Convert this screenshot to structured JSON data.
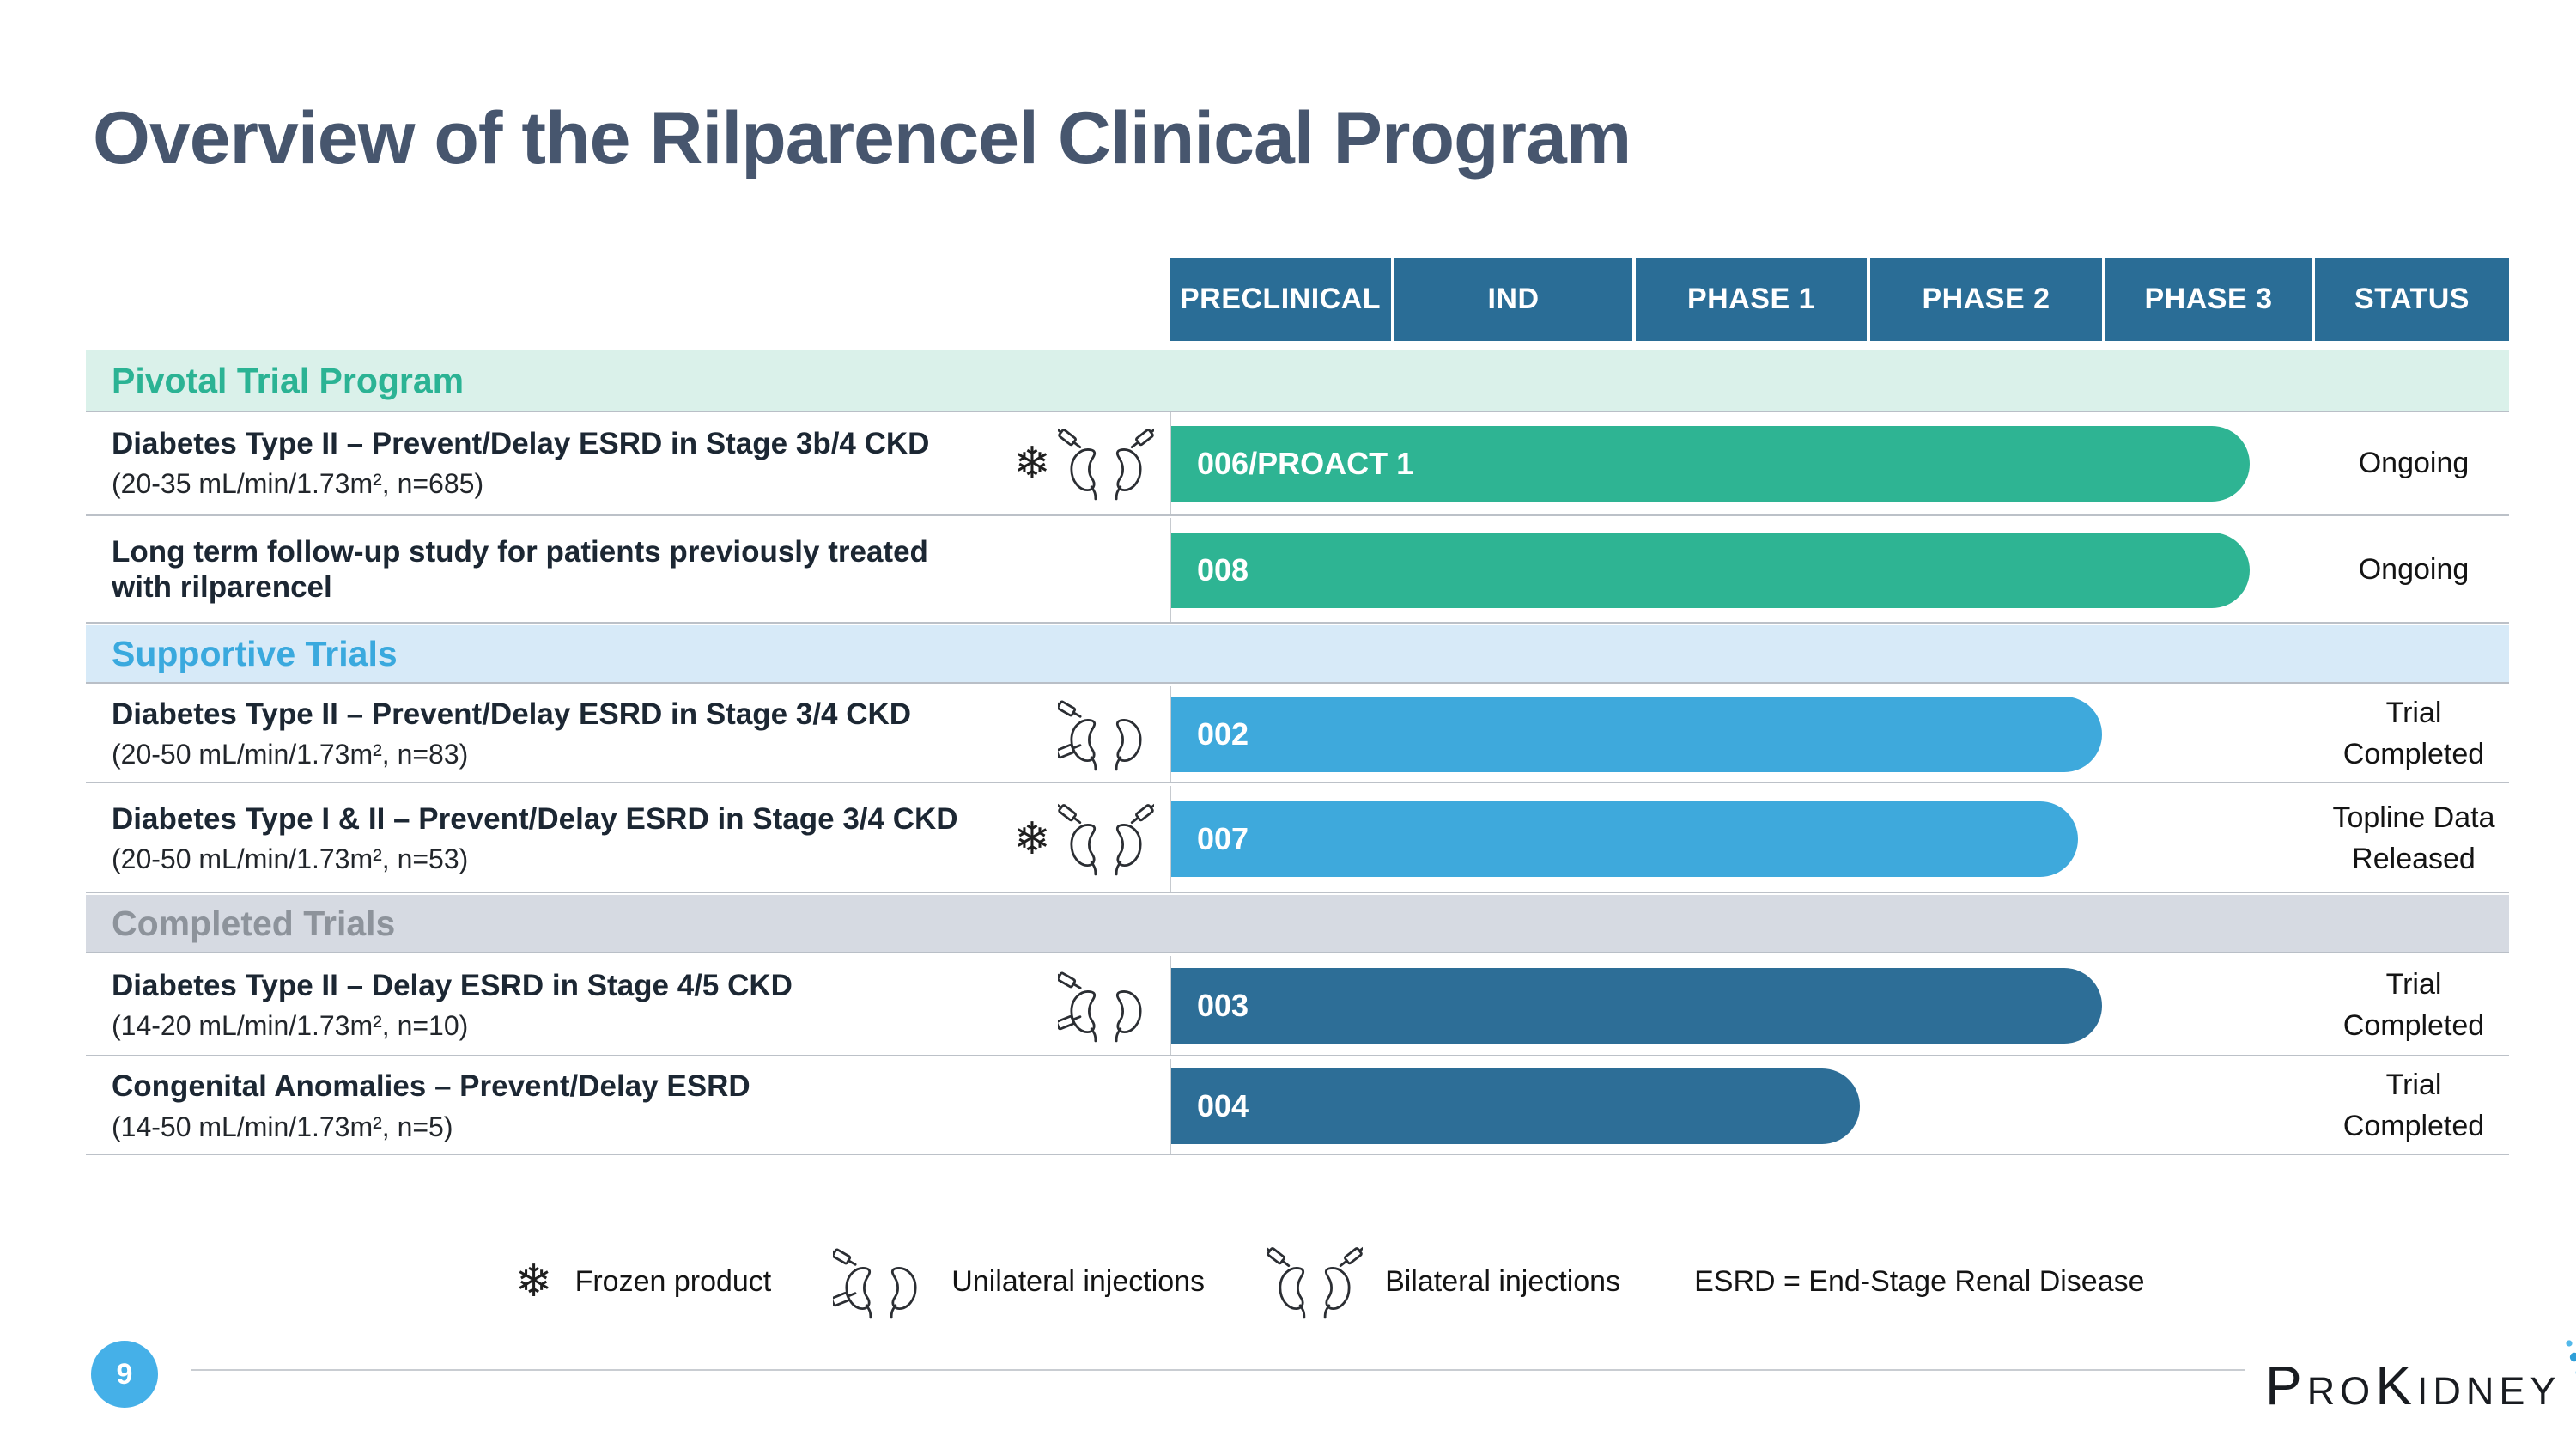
{
  "slide": {
    "title": "Overview of the Rilparencel Clinical Program"
  },
  "colors": {
    "header_bg": "#2a6d96",
    "bar_green": "#2eb493",
    "bar_light_blue": "#3ea9dc",
    "bar_dark_blue": "#2d6e97",
    "title_text": "#47566e",
    "page_badge_bg": "#45b0e8"
  },
  "pipeline": {
    "columns": [
      "PRECLINICAL",
      "IND",
      "PHASE 1",
      "PHASE 2",
      "PHASE 3",
      "STATUS"
    ],
    "sections": [
      {
        "label": "Pivotal Trial Program",
        "accent": "#2bb394",
        "band_bg": "#daf1ea",
        "rows": [
          {
            "title": "Diabetes Type II – Prevent/Delay ESRD in Stage 3b/4 CKD",
            "subtitle": "(20-35 mL/min/1.73m², n=685)",
            "icons": [
              "frozen",
              "bilateral"
            ],
            "bar": {
              "label": "006/PROACT 1",
              "color": "#2eb493",
              "width_pct": 80.6
            },
            "status": "Ongoing"
          },
          {
            "title": "Long term follow-up study for patients previously treated with rilparencel",
            "subtitle": "",
            "icons": [],
            "bar": {
              "label": "008",
              "color": "#2eb493",
              "width_pct": 80.6
            },
            "status": "Ongoing"
          }
        ]
      },
      {
        "label": "Supportive Trials",
        "accent": "#3aa9de",
        "band_bg": "#d7eaf8",
        "rows": [
          {
            "title": "Diabetes Type II – Prevent/Delay ESRD in Stage 3/4 CKD",
            "subtitle": "(20-50 mL/min/1.73m², n=83)",
            "icons": [
              "unilateral"
            ],
            "bar": {
              "label": "002",
              "color": "#3ea9dc",
              "width_pct": 69.6
            },
            "status": "Trial Completed"
          },
          {
            "title": "Diabetes Type I & II – Prevent/Delay ESRD in Stage 3/4 CKD",
            "subtitle": "(20-50 mL/min/1.73m², n=53)",
            "icons": [
              "frozen",
              "bilateral"
            ],
            "bar": {
              "label": "007",
              "color": "#3ea9dc",
              "width_pct": 67.8
            },
            "status": "Topline Data Released"
          }
        ]
      },
      {
        "label": "Completed Trials",
        "accent": "#8d939b",
        "band_bg": "#d6dae2",
        "rows": [
          {
            "title": "Diabetes Type II – Delay ESRD in Stage 4/5 CKD",
            "subtitle": "(14-20 mL/min/1.73m², n=10)",
            "icons": [
              "unilateral"
            ],
            "bar": {
              "label": "003",
              "color": "#2d6e97",
              "width_pct": 69.6
            },
            "status": "Trial Completed"
          },
          {
            "title": "Congenital Anomalies – Prevent/Delay ESRD",
            "subtitle": "(14-50 mL/min/1.73m², n=5)",
            "icons": [],
            "bar": {
              "label": "004",
              "color": "#2d6e97",
              "width_pct": 51.5
            },
            "status": "Trial Completed"
          }
        ]
      }
    ]
  },
  "legend": {
    "items": [
      {
        "icon": "frozen",
        "label": "Frozen product"
      },
      {
        "icon": "unilateral",
        "label": "Unilateral injections"
      },
      {
        "icon": "bilateral",
        "label": "Bilateral injections"
      }
    ],
    "note": "ESRD = End-Stage Renal Disease"
  },
  "footer": {
    "page_number": "9",
    "logo_text": "ProKidney"
  },
  "chart_data": {
    "type": "bar",
    "subtype": "horizontal-pipeline-gantt",
    "title": "Overview of the Rilparencel Clinical Program",
    "phase_axis": [
      "PRECLINICAL",
      "IND",
      "PHASE 1",
      "PHASE 2",
      "PHASE 3"
    ],
    "phase_scale_note": "phase_extent units: 0=start Preclinical, 1=end Preclinical/IND start, 3=end Phase 1, 4=end Phase 2, 5=end Phase 3",
    "bars": [
      {
        "trial": "006/PROACT 1",
        "group": "Pivotal Trial Program",
        "indication": "Diabetes Type II – Prevent/Delay ESRD in Stage 3b/4 CKD (20-35 mL/min/1.73m², n=685)",
        "phase_extent": 4.67,
        "status": "Ongoing",
        "color": "#2eb493"
      },
      {
        "trial": "008",
        "group": "Pivotal Trial Program",
        "indication": "Long term follow-up study for patients previously treated with rilparencel",
        "phase_extent": 4.67,
        "status": "Ongoing",
        "color": "#2eb493"
      },
      {
        "trial": "002",
        "group": "Supportive Trials",
        "indication": "Diabetes Type II – Prevent/Delay ESRD in Stage 3/4 CKD (20-50 mL/min/1.73m², n=83)",
        "phase_extent": 4.0,
        "status": "Trial Completed",
        "color": "#3ea9dc"
      },
      {
        "trial": "007",
        "group": "Supportive Trials",
        "indication": "Diabetes Type I & II – Prevent/Delay ESRD in Stage 3/4 CKD (20-50 mL/min/1.73m², n=53)",
        "phase_extent": 3.9,
        "status": "Topline Data Released",
        "color": "#3ea9dc"
      },
      {
        "trial": "003",
        "group": "Completed Trials",
        "indication": "Diabetes Type II – Delay ESRD in Stage 4/5 CKD (14-20 mL/min/1.73m², n=10)",
        "phase_extent": 4.0,
        "status": "Trial Completed",
        "color": "#2d6e97"
      },
      {
        "trial": "004",
        "group": "Completed Trials",
        "indication": "Congenital Anomalies – Prevent/Delay ESRD (14-50 mL/min/1.73m², n=5)",
        "phase_extent": 3.0,
        "status": "Trial Completed",
        "color": "#2d6e97"
      }
    ],
    "legend_entries": [
      "Frozen product",
      "Unilateral injections",
      "Bilateral injections",
      "ESRD = End-Stage Renal Disease"
    ]
  }
}
